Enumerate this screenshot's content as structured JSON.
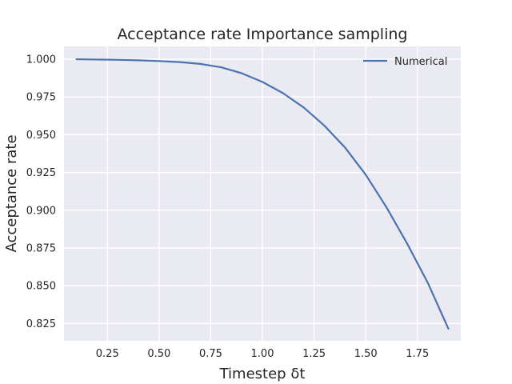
{
  "chart_data": {
    "type": "line",
    "title": "Acceptance rate Importance sampling",
    "xlabel": "Timestep δt",
    "ylabel": "Acceptance rate",
    "xlim": [
      0.04,
      1.96
    ],
    "ylim": [
      0.8135,
      1.0085
    ],
    "xticks": [
      0.25,
      0.5,
      0.75,
      1.0,
      1.25,
      1.5,
      1.75
    ],
    "xtick_labels": [
      "0.25",
      "0.50",
      "0.75",
      "1.00",
      "1.25",
      "1.50",
      "1.75"
    ],
    "yticks": [
      0.825,
      0.85,
      0.875,
      0.9,
      0.925,
      0.95,
      0.975,
      1.0
    ],
    "ytick_labels": [
      "0.825",
      "0.850",
      "0.875",
      "0.900",
      "0.925",
      "0.950",
      "0.975",
      "1.000"
    ],
    "grid": true,
    "legend_position": "top-right",
    "series": [
      {
        "name": "Numerical",
        "color": "#4c72b0",
        "x": [
          0.1,
          0.2,
          0.3,
          0.4,
          0.5,
          0.6,
          0.7,
          0.8,
          0.9,
          1.0,
          1.1,
          1.2,
          1.3,
          1.4,
          1.5,
          1.6,
          1.7,
          1.8,
          1.9
        ],
        "y": [
          1.0,
          0.9998,
          0.9996,
          0.9993,
          0.9988,
          0.9981,
          0.9969,
          0.9947,
          0.9907,
          0.985,
          0.9775,
          0.968,
          0.956,
          0.9415,
          0.9235,
          0.902,
          0.878,
          0.852,
          0.8215
        ]
      }
    ]
  },
  "style": {
    "plot_background": "#eaeaf2",
    "grid_color": "#ffffff",
    "text_color": "#262626"
  }
}
